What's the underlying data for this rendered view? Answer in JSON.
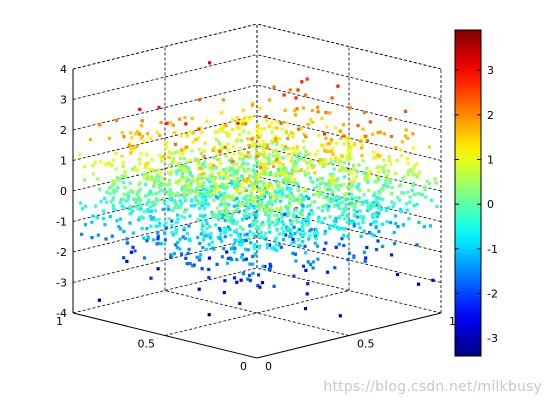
{
  "chart_data": {
    "type": "scatter",
    "subtype": "3d-scatter",
    "title": "",
    "xlabel": "",
    "ylabel": "",
    "zlabel": "",
    "xlim": [
      0,
      1
    ],
    "ylim": [
      0,
      1
    ],
    "zlim": [
      -4,
      4
    ],
    "x_ticks": [
      "0",
      "0.5",
      "1"
    ],
    "y_ticks": [
      "0",
      "0.5",
      "1"
    ],
    "z_ticks": [
      "-4",
      "-3",
      "-2",
      "-1",
      "0",
      "1",
      "2",
      "3",
      "4"
    ],
    "grid": true,
    "box": "dashed",
    "colormap": "jet",
    "colorbar": {
      "limits": [
        -3.4,
        3.9
      ],
      "ticks": [
        "-3",
        "-2",
        "-1",
        "0",
        "1",
        "2",
        "3"
      ]
    },
    "point_count_estimate": 2000,
    "series_description": "z values roughly normally distributed (mean 0, sd 1) over x,y uniform in [0,1]; color encodes z"
  },
  "watermark": "https://blog.csdn.net/milkbusy"
}
